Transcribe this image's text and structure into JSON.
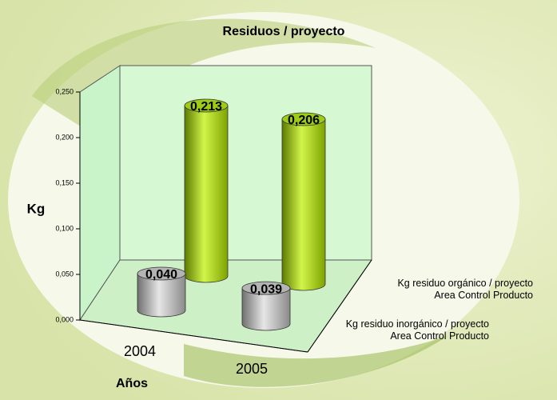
{
  "chart_data": {
    "type": "bar",
    "title": "Residuos / proyecto",
    "y_label": "Kg",
    "x_label": "Años",
    "categories": [
      "2004",
      "2005"
    ],
    "series": [
      {
        "name": "Kg residuo orgánico / proyecto\nArea Control Producto",
        "color": "#9ccc14",
        "values": [
          0.213,
          0.206
        ],
        "value_labels": [
          "0,213",
          "0,206"
        ]
      },
      {
        "name": "Kg residuo inorgánico / proyecto\nArea Control Producto",
        "color": "#b4b4b4",
        "values": [
          0.04,
          0.039
        ],
        "value_labels": [
          "0,040",
          "0,039"
        ]
      }
    ],
    "ylim": [
      0,
      0.25
    ],
    "yticks": [
      {
        "value": 0,
        "label": "0,000"
      },
      {
        "value": 0.05,
        "label": "0,050"
      },
      {
        "value": 0.1,
        "label": "0,100"
      },
      {
        "value": 0.15,
        "label": "0,150"
      },
      {
        "value": 0.2,
        "label": "0,200"
      },
      {
        "value": 0.25,
        "label": "0,250"
      }
    ]
  }
}
